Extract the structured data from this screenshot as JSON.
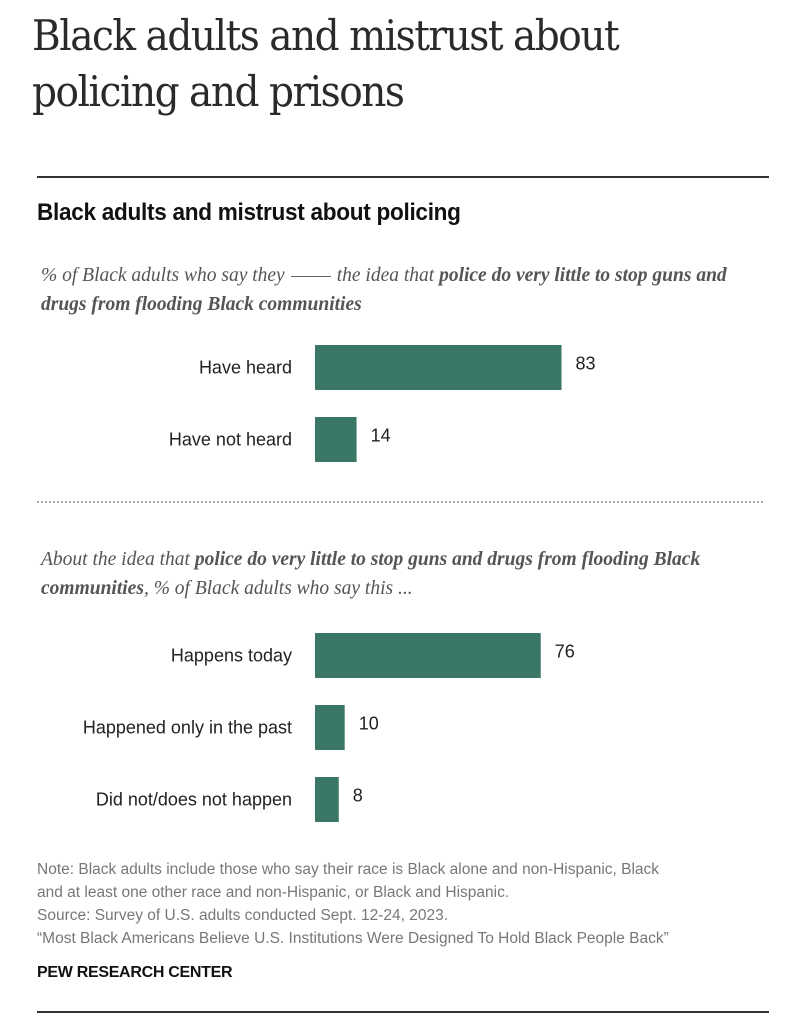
{
  "header": {
    "title_line1": "Black adults and mistrust about",
    "title_line2": "policing and prisons"
  },
  "colors": {
    "bar": "#3a7767",
    "text": "#222222",
    "muted": "#777777"
  },
  "chart_data": [
    {
      "type": "bar",
      "orientation": "horizontal",
      "title": "Black adults and mistrust about policing",
      "subtitle": {
        "part1": "% of Black adults who say they",
        "part2": "the idea that",
        "bold": "police do very little to stop guns and drugs from flooding Black communities"
      },
      "categories": [
        "Have heard",
        "Have not heard"
      ],
      "values": [
        83,
        14
      ],
      "xlim": [
        0,
        100
      ],
      "grid": false,
      "legend": "none"
    },
    {
      "type": "bar",
      "orientation": "horizontal",
      "subtitle": {
        "part1": "About the idea that",
        "bold": "police do very little to stop guns and drugs from flooding Black communities",
        "part2": ", % of Black adults who say this ..."
      },
      "categories": [
        "Happens today",
        "Happened only in the past",
        "Did not/does not happen"
      ],
      "values": [
        76,
        10,
        8
      ],
      "xlim": [
        0,
        100
      ],
      "grid": false,
      "legend": "none"
    }
  ],
  "footer": {
    "note_line1": "Note: Black adults include those who say their race is Black alone and non-Hispanic, Black",
    "note_line2": "and at least one other race and non-Hispanic, or Black and Hispanic.",
    "source": "Source: Survey of U.S. adults conducted Sept. 12-24, 2023.",
    "report": "“Most Black Americans Believe U.S. Institutions Were Designed To Hold Black People Back”",
    "brand": "PEW RESEARCH CENTER"
  }
}
